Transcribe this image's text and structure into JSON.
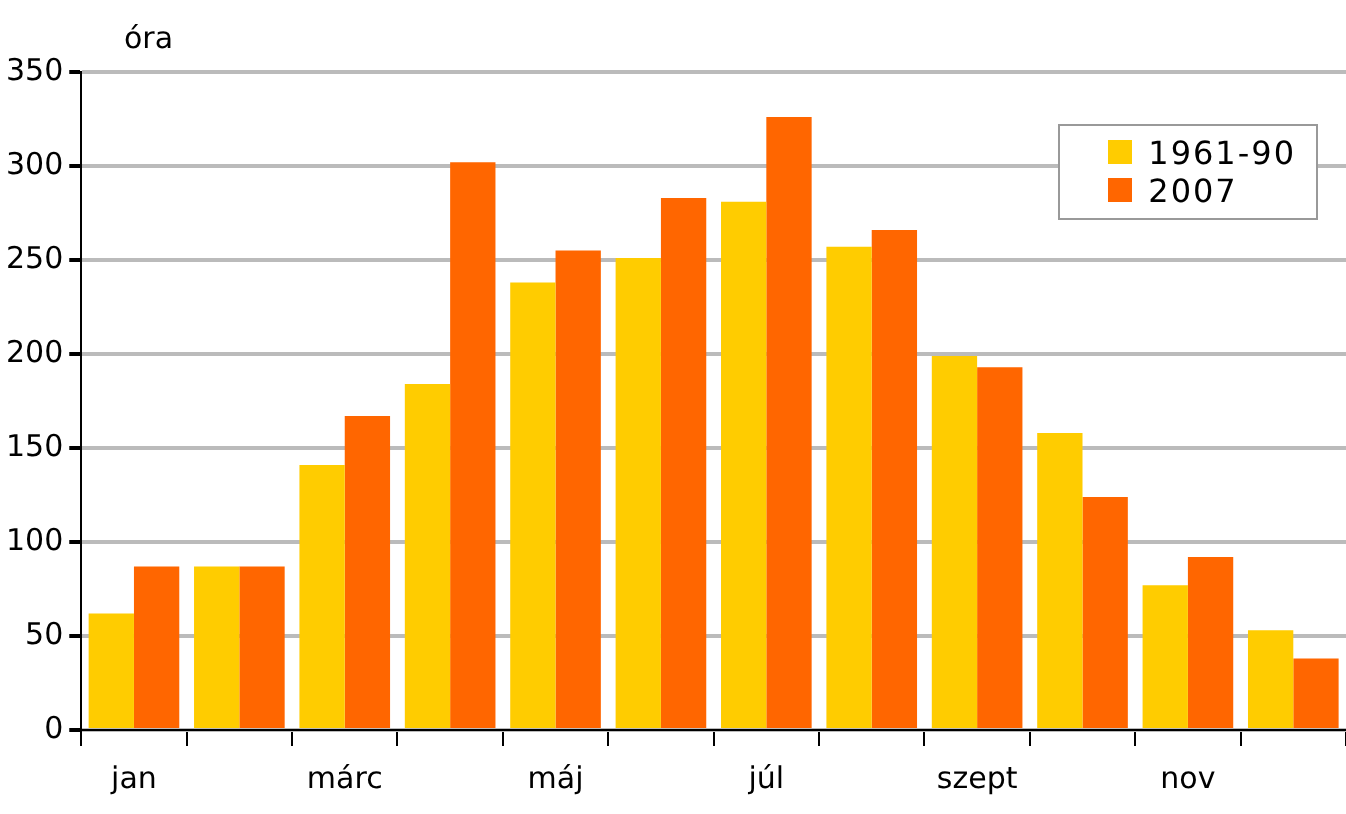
{
  "chart_data": {
    "type": "bar",
    "ylabel": "óra",
    "categories": [
      "jan",
      null,
      "márc",
      null,
      "máj",
      null,
      "júl",
      null,
      "szept",
      null,
      "nov",
      null
    ],
    "series": [
      {
        "name": "1961-90",
        "color": "#ffcc00",
        "values": [
          62,
          87,
          141,
          184,
          238,
          251,
          281,
          257,
          199,
          158,
          77,
          53
        ]
      },
      {
        "name": "2007",
        "color": "#ff6600",
        "values": [
          87,
          87,
          167,
          302,
          255,
          283,
          326,
          266,
          193,
          124,
          92,
          38
        ]
      }
    ],
    "ylim": [
      0,
      350
    ],
    "yticks": [
      0,
      50,
      100,
      150,
      200,
      250,
      300,
      350
    ],
    "grid": "y",
    "legend": "top right"
  }
}
